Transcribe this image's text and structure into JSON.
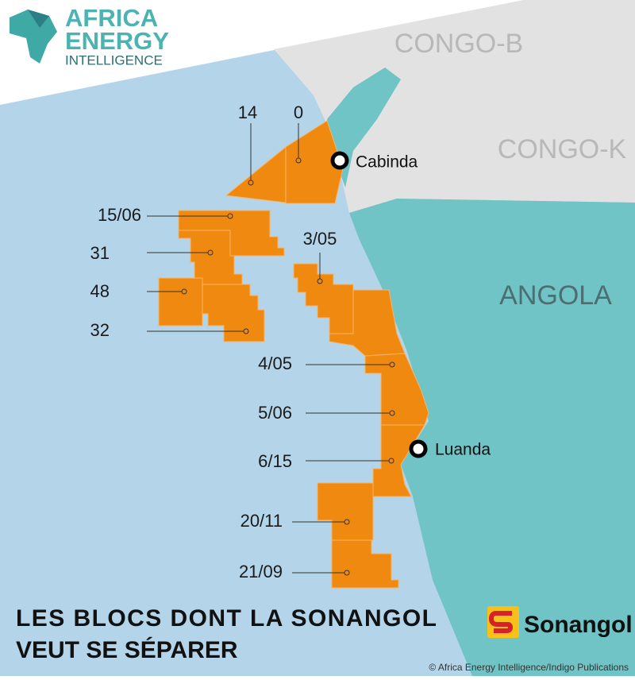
{
  "logo": {
    "line1": "AFRICA",
    "line2": "ENERGY",
    "line3": "INTELLIGENCE"
  },
  "countries": [
    "CONGO-B",
    "CONGO-K",
    "ANGOLA"
  ],
  "cities": [
    "Cabinda",
    "Luanda"
  ],
  "blocks": [
    "14",
    "0",
    "15/06",
    "31",
    "48",
    "32",
    "3/05",
    "4/05",
    "5/06",
    "6/15",
    "20/11",
    "21/09"
  ],
  "title": [
    "LES BLOCS DONT LA SONANGOL",
    "VEUT SE SÉPARER"
  ],
  "brand": "Sonangol",
  "credit": "© Africa Energy Intelligence/Indigo Publications"
}
